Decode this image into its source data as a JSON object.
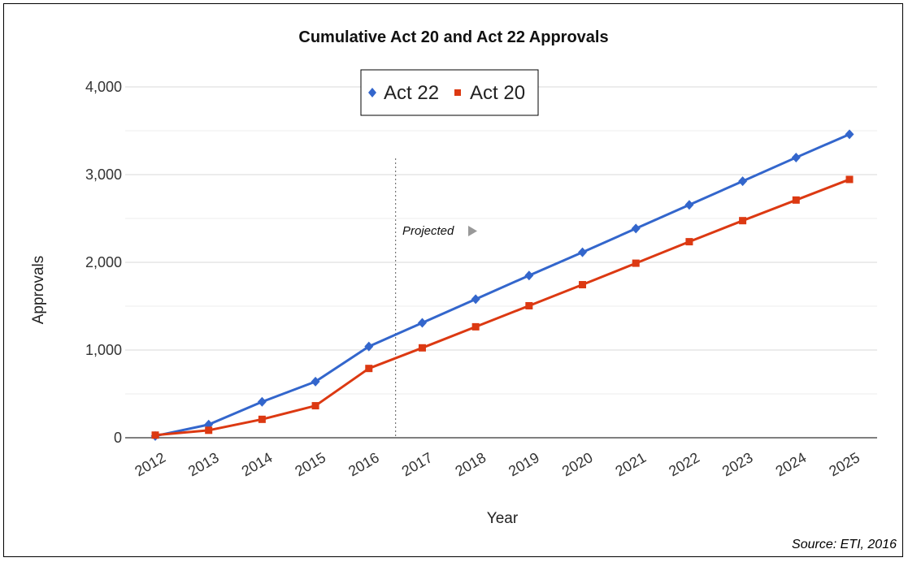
{
  "chart_data": {
    "type": "line",
    "title": "Cumulative Act 20 and Act 22 Approvals",
    "xlabel": "Year",
    "ylabel": "Approvals",
    "x": [
      "2012",
      "2013",
      "2014",
      "2015",
      "2016",
      "2017",
      "2018",
      "2019",
      "2020",
      "2021",
      "2022",
      "2023",
      "2024",
      "2025"
    ],
    "ylim": [
      0,
      4000
    ],
    "yticks": [
      "0",
      "1,000",
      "2,000",
      "3,000",
      "4,000"
    ],
    "grid": true,
    "legend_position": "top-center",
    "series": [
      {
        "name": "Act 22",
        "color": "#3366cc",
        "marker": "diamond",
        "values": [
          20,
          150,
          410,
          640,
          1040,
          1310,
          1580,
          1850,
          2115,
          2385,
          2655,
          2925,
          3195,
          3460
        ]
      },
      {
        "name": "Act 20",
        "color": "#dc3912",
        "marker": "square",
        "values": [
          30,
          85,
          210,
          365,
          790,
          1025,
          1265,
          1505,
          1745,
          1990,
          2235,
          2475,
          2710,
          2945
        ]
      }
    ],
    "annotation": {
      "text": "Projected",
      "divider_after": "2016",
      "arrow": "right-triangle"
    },
    "source": "Source: ETI, 2016"
  }
}
